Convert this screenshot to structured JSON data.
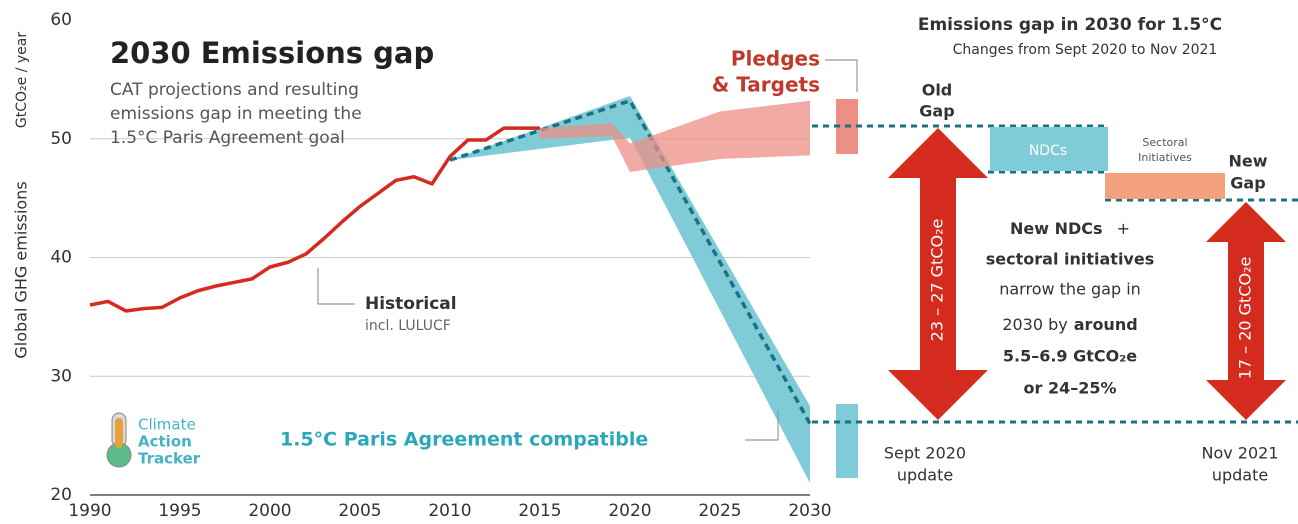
{
  "chart_data": {
    "type": "line",
    "title": "2030 Emissions gap",
    "subtitle": [
      "CAT projections and resulting",
      "emissions gap in meeting the",
      "1.5°C Paris Agreement goal"
    ],
    "ylabel": "Global GHG emissions",
    "yunit": "GtCO₂e / year",
    "xlim": [
      1990,
      2030
    ],
    "xticks": [
      1990,
      1995,
      2000,
      2005,
      2010,
      2015,
      2020,
      2025,
      2030
    ],
    "ylim": [
      20,
      60
    ],
    "yticks": [
      20,
      30,
      40,
      50,
      60
    ],
    "grid": true,
    "series": [
      {
        "name": "Historical",
        "note": "incl. LULUCF",
        "color": "#d52b1e",
        "x": [
          1990,
          1991,
          1992,
          1993,
          1994,
          1995,
          1996,
          1997,
          1998,
          1999,
          2000,
          2001,
          2002,
          2003,
          2004,
          2005,
          2006,
          2007,
          2008,
          2009,
          2010,
          2011,
          2012,
          2013,
          2014,
          2015
        ],
        "values": [
          36.0,
          36.3,
          35.5,
          35.7,
          35.8,
          36.6,
          37.2,
          37.6,
          37.9,
          38.2,
          39.2,
          39.6,
          40.3,
          41.6,
          43.0,
          44.3,
          45.4,
          46.5,
          46.8,
          46.2,
          48.5,
          49.9,
          49.9,
          50.9,
          50.9,
          50.9
        ]
      }
    ],
    "bands": [
      {
        "label": "1.5°C Paris Agreement compatible",
        "color": "#7fcbd7",
        "x": [
          2010,
          2020,
          2030
        ],
        "high": [
          48.2,
          53.6,
          27.5
        ],
        "low": [
          48.2,
          50.1,
          21.0
        ],
        "line": {
          "color": "#1b7283",
          "values": [
            48.2,
            53.2,
            26.0
          ]
        }
      },
      {
        "label": [
          "Pledges",
          "& Targets"
        ],
        "color": "#ee8f86",
        "x": [
          2015,
          2019,
          2020,
          2025,
          2030
        ],
        "high": [
          50.9,
          51.3,
          49.6,
          52.3,
          53.2
        ],
        "low": [
          50.0,
          50.2,
          47.2,
          48.3,
          48.6
        ]
      }
    ],
    "logo": [
      "Climate",
      "Action",
      "Tracker"
    ],
    "gap_panel": {
      "title": "Emissions gap in 2030 for 1.5°C",
      "subtitle": "Changes from Sept 2020 to Nov 2021",
      "old_gap": [
        "Old",
        "Gap"
      ],
      "new_gap": [
        "New",
        "Gap"
      ],
      "ndcs": "NDCs",
      "sectoral": [
        "Sectoral",
        "Initiatives"
      ],
      "old_range": "23 – 27 GtCO₂e",
      "new_range": "17 – 20 GtCO₂e",
      "message": [
        "New NDCs",
        "+",
        "sectoral initiatives",
        "narrow the gap in",
        "2030 by",
        "around",
        "5.5–6.9 GtCO₂e",
        "or 24–25%"
      ],
      "old_date": [
        "Sept 2020",
        "update"
      ],
      "new_date": [
        "Nov 2021",
        "update"
      ]
    }
  }
}
